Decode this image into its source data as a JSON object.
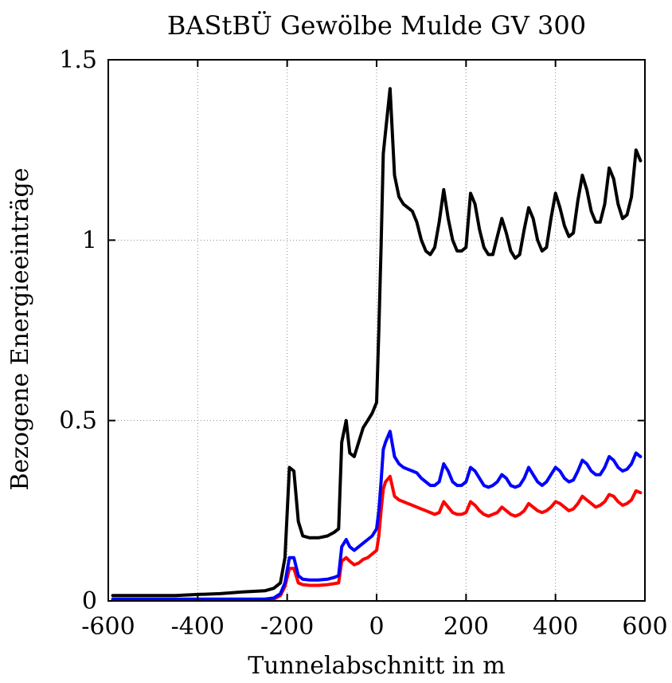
{
  "chart_data": {
    "type": "line",
    "title": "BAStBÜ Gewölbe Mulde GV 300",
    "xlabel": "Tunnelabschnitt in m",
    "ylabel": "Bezogene Energieeinträge",
    "xlim": [
      -600,
      600
    ],
    "ylim": [
      0,
      1.5
    ],
    "xticks": [
      -600,
      -400,
      -200,
      0,
      200,
      400,
      600
    ],
    "xtick_labels": [
      "-600",
      "-400",
      "-200",
      "0",
      "200",
      "400",
      "600"
    ],
    "yticks": [
      0,
      0.5,
      1,
      1.5
    ],
    "ytick_labels": [
      "0",
      "0.5",
      "1",
      "1.5"
    ],
    "grid": true,
    "legend": "none",
    "series": [
      {
        "color": "#000000",
        "x": [
          -590,
          -550,
          -500,
          -450,
          -400,
          -350,
          -300,
          -250,
          -230,
          -215,
          -205,
          -195,
          -185,
          -175,
          -165,
          -150,
          -130,
          -110,
          -95,
          -85,
          -78,
          -68,
          -60,
          -50,
          -40,
          -30,
          -20,
          -10,
          0,
          5,
          10,
          15,
          20,
          30,
          40,
          50,
          60,
          70,
          80,
          90,
          100,
          110,
          120,
          130,
          140,
          150,
          160,
          170,
          180,
          190,
          200,
          210,
          220,
          230,
          240,
          250,
          260,
          270,
          280,
          290,
          300,
          310,
          320,
          330,
          340,
          350,
          360,
          370,
          380,
          390,
          400,
          410,
          420,
          430,
          440,
          450,
          460,
          470,
          480,
          490,
          500,
          510,
          520,
          530,
          540,
          550,
          560,
          570,
          580,
          590
        ],
        "y": [
          0.015,
          0.015,
          0.015,
          0.015,
          0.018,
          0.02,
          0.025,
          0.028,
          0.035,
          0.05,
          0.12,
          0.37,
          0.36,
          0.22,
          0.18,
          0.175,
          0.175,
          0.18,
          0.19,
          0.2,
          0.44,
          0.5,
          0.41,
          0.4,
          0.44,
          0.48,
          0.5,
          0.52,
          0.55,
          0.75,
          0.98,
          1.24,
          1.3,
          1.42,
          1.18,
          1.12,
          1.1,
          1.09,
          1.08,
          1.05,
          1.0,
          0.97,
          0.96,
          0.98,
          1.05,
          1.14,
          1.06,
          1.0,
          0.97,
          0.97,
          0.98,
          1.13,
          1.1,
          1.03,
          0.98,
          0.96,
          0.96,
          1.01,
          1.06,
          1.02,
          0.97,
          0.95,
          0.96,
          1.03,
          1.09,
          1.06,
          1.0,
          0.97,
          0.98,
          1.06,
          1.13,
          1.09,
          1.04,
          1.01,
          1.02,
          1.11,
          1.18,
          1.14,
          1.08,
          1.05,
          1.05,
          1.1,
          1.2,
          1.17,
          1.1,
          1.06,
          1.07,
          1.12,
          1.25,
          1.22
        ]
      },
      {
        "color": "#0000ff",
        "x": [
          -590,
          -550,
          -500,
          -450,
          -400,
          -350,
          -300,
          -250,
          -230,
          -215,
          -205,
          -195,
          -185,
          -175,
          -165,
          -150,
          -130,
          -110,
          -95,
          -85,
          -78,
          -68,
          -60,
          -50,
          -40,
          -30,
          -20,
          -10,
          0,
          5,
          10,
          15,
          20,
          30,
          40,
          50,
          60,
          70,
          80,
          90,
          100,
          110,
          120,
          130,
          140,
          150,
          160,
          170,
          180,
          190,
          200,
          210,
          220,
          230,
          240,
          250,
          260,
          270,
          280,
          290,
          300,
          310,
          320,
          330,
          340,
          350,
          360,
          370,
          380,
          390,
          400,
          410,
          420,
          430,
          440,
          450,
          460,
          470,
          480,
          490,
          500,
          510,
          520,
          530,
          540,
          550,
          560,
          570,
          580,
          590
        ],
        "y": [
          0.005,
          0.005,
          0.005,
          0.005,
          0.005,
          0.005,
          0.005,
          0.005,
          0.008,
          0.02,
          0.05,
          0.12,
          0.12,
          0.07,
          0.06,
          0.058,
          0.058,
          0.06,
          0.065,
          0.07,
          0.15,
          0.17,
          0.15,
          0.14,
          0.15,
          0.16,
          0.17,
          0.18,
          0.2,
          0.25,
          0.33,
          0.42,
          0.44,
          0.47,
          0.4,
          0.38,
          0.37,
          0.365,
          0.36,
          0.355,
          0.34,
          0.33,
          0.32,
          0.32,
          0.33,
          0.38,
          0.36,
          0.33,
          0.32,
          0.32,
          0.33,
          0.37,
          0.36,
          0.34,
          0.32,
          0.315,
          0.32,
          0.33,
          0.35,
          0.34,
          0.32,
          0.315,
          0.32,
          0.34,
          0.37,
          0.35,
          0.33,
          0.32,
          0.33,
          0.35,
          0.37,
          0.36,
          0.34,
          0.33,
          0.335,
          0.36,
          0.39,
          0.38,
          0.36,
          0.35,
          0.35,
          0.37,
          0.4,
          0.39,
          0.37,
          0.36,
          0.365,
          0.38,
          0.41,
          0.4
        ]
      },
      {
        "color": "#ff0000",
        "x": [
          -590,
          -550,
          -500,
          -450,
          -400,
          -350,
          -300,
          -250,
          -230,
          -215,
          -205,
          -195,
          -185,
          -175,
          -165,
          -150,
          -130,
          -110,
          -95,
          -85,
          -78,
          -68,
          -60,
          -50,
          -40,
          -30,
          -20,
          -10,
          0,
          5,
          10,
          15,
          20,
          30,
          40,
          50,
          60,
          70,
          80,
          90,
          100,
          110,
          120,
          130,
          140,
          150,
          160,
          170,
          180,
          190,
          200,
          210,
          220,
          230,
          240,
          250,
          260,
          270,
          280,
          290,
          300,
          310,
          320,
          330,
          340,
          350,
          360,
          370,
          380,
          390,
          400,
          410,
          420,
          430,
          440,
          450,
          460,
          470,
          480,
          490,
          500,
          510,
          520,
          530,
          540,
          550,
          560,
          570,
          580,
          590
        ],
        "y": [
          0.003,
          0.003,
          0.003,
          0.003,
          0.003,
          0.003,
          0.003,
          0.003,
          0.005,
          0.015,
          0.04,
          0.09,
          0.09,
          0.05,
          0.045,
          0.043,
          0.043,
          0.045,
          0.048,
          0.05,
          0.11,
          0.12,
          0.11,
          0.1,
          0.105,
          0.115,
          0.12,
          0.13,
          0.14,
          0.18,
          0.25,
          0.31,
          0.33,
          0.345,
          0.29,
          0.28,
          0.275,
          0.27,
          0.265,
          0.26,
          0.255,
          0.25,
          0.245,
          0.24,
          0.245,
          0.275,
          0.26,
          0.245,
          0.24,
          0.24,
          0.245,
          0.275,
          0.265,
          0.25,
          0.24,
          0.235,
          0.24,
          0.245,
          0.26,
          0.25,
          0.24,
          0.235,
          0.24,
          0.25,
          0.27,
          0.26,
          0.25,
          0.245,
          0.25,
          0.26,
          0.275,
          0.27,
          0.26,
          0.25,
          0.255,
          0.27,
          0.29,
          0.28,
          0.27,
          0.26,
          0.265,
          0.275,
          0.295,
          0.29,
          0.275,
          0.265,
          0.27,
          0.28,
          0.305,
          0.3
        ]
      }
    ]
  }
}
